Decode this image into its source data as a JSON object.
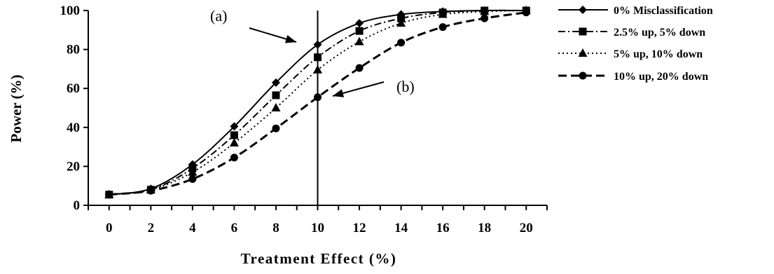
{
  "chart_data": {
    "type": "line",
    "xlabel": "Treatment Effect (%)",
    "ylabel": "Power (%)",
    "xlim": [
      -1,
      21
    ],
    "ylim": [
      0,
      100
    ],
    "x": [
      0,
      2,
      4,
      6,
      8,
      10,
      12,
      14,
      16,
      18,
      20
    ],
    "x_tick_labels": [
      "0",
      "2",
      "4",
      "6",
      "8",
      "10",
      "12",
      "14",
      "16",
      "18",
      "20"
    ],
    "y_ticks": [
      0,
      20,
      40,
      60,
      80,
      100
    ],
    "y_tick_labels": [
      "0",
      "20",
      "40",
      "60",
      "80",
      "100"
    ],
    "grid": false,
    "legend_position": "right",
    "series": [
      {
        "name": "0% Misclassification",
        "marker": "diamond",
        "line_style": "solid",
        "values": [
          5.5,
          8.5,
          21,
          40.5,
          63,
          82.5,
          93.5,
          98,
          99.5,
          100,
          100
        ]
      },
      {
        "name": "2.5% up, 5% down",
        "marker": "square",
        "line_style": "dash-dot",
        "values": [
          5.5,
          8,
          19,
          36,
          56.5,
          76,
          89.5,
          96,
          99,
          100,
          100
        ]
      },
      {
        "name": "5% up, 10% down",
        "marker": "triangle",
        "line_style": "dotted",
        "values": [
          5.5,
          8,
          17,
          32,
          50,
          69.5,
          84,
          93.5,
          98,
          99.5,
          100
        ]
      },
      {
        "name": "10% up, 20% down",
        "marker": "circle",
        "line_style": "dashed",
        "values": [
          5.5,
          7.5,
          13.5,
          24.5,
          39.5,
          55.5,
          70.5,
          83.5,
          91.5,
          96,
          99
        ]
      }
    ],
    "reference_line": {
      "x": 10
    },
    "annotations": [
      {
        "label": "(a)",
        "target": {
          "x": 10,
          "y": 82.5
        }
      },
      {
        "label": "(b)",
        "target": {
          "x": 10,
          "y": 55.5
        }
      }
    ]
  }
}
